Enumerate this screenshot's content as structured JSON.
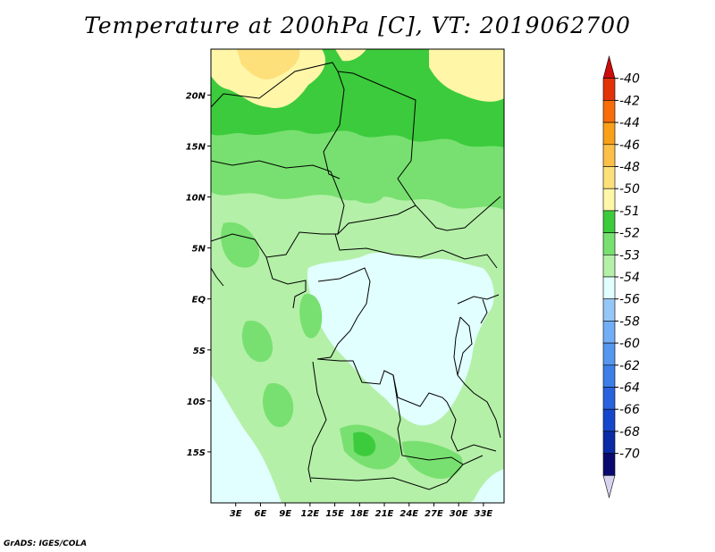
{
  "title": "Temperature at 200hPa [C], VT: 2019062700",
  "credit": "GrADS: IGES/COLA",
  "map": {
    "lat_labels": [
      "20N",
      "15N",
      "10N",
      "5N",
      "EQ",
      "5S",
      "10S",
      "15S"
    ],
    "lat_values": [
      20,
      15,
      10,
      5,
      0,
      -5,
      -10,
      -15
    ],
    "lon_labels": [
      "3E",
      "6E",
      "9E",
      "12E",
      "15E",
      "18E",
      "21E",
      "24E",
      "27E",
      "30E",
      "33E"
    ],
    "lon_values": [
      3,
      6,
      9,
      12,
      15,
      18,
      21,
      24,
      27,
      30,
      33
    ],
    "lat_range": [
      -20,
      24.5
    ],
    "lon_range": [
      0,
      35.5
    ]
  },
  "colorbar": {
    "labels": [
      "-40",
      "-42",
      "-44",
      "-46",
      "-48",
      "-50",
      "-51",
      "-52",
      "-53",
      "-54",
      "-56",
      "-58",
      "-60",
      "-62",
      "-64",
      "-66",
      "-68",
      "-70"
    ],
    "colors": [
      "#d8d4f0",
      "#0a0a6e",
      "#0a2aa6",
      "#1547cc",
      "#2a62de",
      "#3d7ee8",
      "#5596ef",
      "#72aef5",
      "#95c6f8",
      "#e1ffff",
      "#b4f0a8",
      "#78e070",
      "#3ccb3c",
      "#fff6a8",
      "#fde07a",
      "#fcc048",
      "#f9a019",
      "#f66d0a",
      "#e23209",
      "#cc0b0b"
    ],
    "colors_note_order": "bottom-to-top"
  },
  "legend_units": "C"
}
